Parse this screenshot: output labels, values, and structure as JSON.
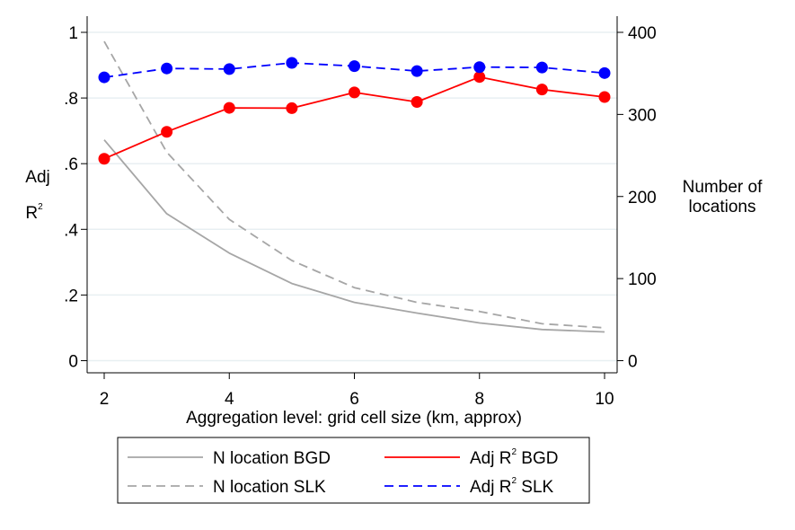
{
  "chart_data": {
    "type": "line",
    "x": [
      2,
      3,
      4,
      5,
      6,
      7,
      8,
      9,
      10
    ],
    "xlabel": "Aggregation level: grid cell size (km, approx)",
    "xlim": [
      2,
      10
    ],
    "xticks": [
      "2",
      "4",
      "6",
      "8",
      "10"
    ],
    "y_left": {
      "label_line1": "Adj",
      "label_line2": "R",
      "label_sup": "2",
      "lim": [
        0,
        1
      ],
      "ticks": [
        "0",
        ".2",
        ".4",
        ".6",
        ".8",
        "1"
      ]
    },
    "y_right": {
      "label_line1": "Number of",
      "label_line2": "locations",
      "lim": [
        0,
        400
      ],
      "ticks": [
        "0",
        "100",
        "200",
        "300",
        "400"
      ]
    },
    "grid": true,
    "legend_placement": "bottom",
    "series": [
      {
        "name": "N location BGD",
        "axis": "right",
        "style": "solid",
        "color": "#a6a6a6",
        "markers": false,
        "values": [
          269,
          179,
          131,
          94,
          71,
          58,
          46,
          38,
          35
        ]
      },
      {
        "name": "N location SLK",
        "axis": "right",
        "style": "dashed",
        "color": "#a6a6a6",
        "markers": false,
        "values": [
          389,
          254,
          172,
          122,
          89,
          71,
          60,
          45,
          40
        ]
      },
      {
        "name": "Adj R BGD",
        "sup": "2",
        "label_suffix": " BGD",
        "axis": "left",
        "style": "solid",
        "color": "#ff0000",
        "markers": true,
        "values": [
          0.615,
          0.697,
          0.77,
          0.769,
          0.817,
          0.788,
          0.864,
          0.826,
          0.803
        ]
      },
      {
        "name": "Adj R SLK",
        "sup": "2",
        "label_suffix": " SLK",
        "axis": "left",
        "style": "dashed",
        "color": "#0000ff",
        "markers": true,
        "values": [
          0.863,
          0.89,
          0.888,
          0.907,
          0.897,
          0.882,
          0.894,
          0.893,
          0.876
        ]
      }
    ]
  }
}
